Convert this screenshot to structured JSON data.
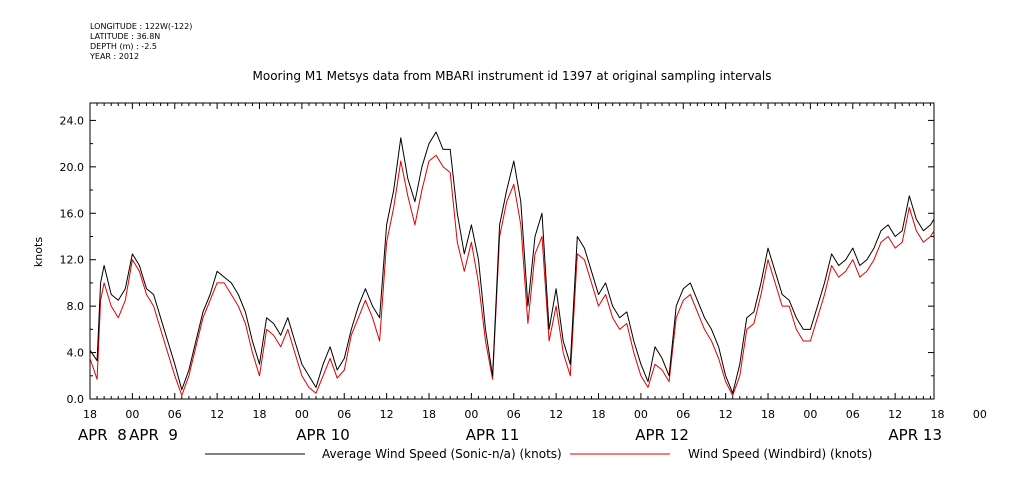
{
  "header": {
    "meta": [
      "LONGITUDE : 122W(-122)",
      "LATITUDE : 36.8N",
      "DEPTH (m) : -2.5",
      "YEAR : 2012"
    ],
    "title": "Mooring M1 Metsys data from MBARI instrument id 1397 at original sampling intervals"
  },
  "colors": {
    "sonic": "#000000",
    "windbird": "#e00000",
    "axis": "#000000"
  },
  "chart_data": {
    "type": "line",
    "title": "Mooring M1 Metsys data from MBARI instrument id 1397 at original sampling intervals",
    "ylabel": "knots",
    "xlabel": "",
    "ylim": [
      0,
      25.5
    ],
    "xlim_hours_from_apr8_18": [
      0,
      119.5
    ],
    "y_ticks": [
      "0.0",
      "4.0",
      "8.0",
      "12.0",
      "16.0",
      "20.0",
      "24.0"
    ],
    "x_hour_ticks": [
      "18",
      "00",
      "06",
      "12",
      "18",
      "00",
      "06",
      "12",
      "18",
      "00",
      "06",
      "12",
      "18",
      "00",
      "06",
      "12",
      "18",
      "00",
      "06",
      "12",
      "18",
      "00"
    ],
    "x_date_labels": [
      "APR  8",
      "APR  9",
      "APR 10",
      "APR 11",
      "APR 12",
      "APR 13"
    ],
    "grid": false,
    "legend_position": "bottom",
    "series": [
      {
        "name": "Average Wind Speed (Sonic-n/a) (knots)",
        "color": "#000000",
        "points": [
          [
            0,
            4.2
          ],
          [
            1,
            3.3
          ],
          [
            1.5,
            10
          ],
          [
            2,
            11.5
          ],
          [
            3,
            9
          ],
          [
            4,
            8.5
          ],
          [
            5,
            9.5
          ],
          [
            6,
            12.5
          ],
          [
            7,
            11.5
          ],
          [
            8,
            9.5
          ],
          [
            9,
            9
          ],
          [
            10,
            7
          ],
          [
            11,
            5
          ],
          [
            12,
            3
          ],
          [
            13,
            0.8
          ],
          [
            14,
            2.5
          ],
          [
            15,
            5
          ],
          [
            16,
            7.5
          ],
          [
            17,
            9
          ],
          [
            18,
            11
          ],
          [
            19,
            10.5
          ],
          [
            20,
            10
          ],
          [
            21,
            9
          ],
          [
            22,
            7.5
          ],
          [
            23,
            5
          ],
          [
            24,
            3
          ],
          [
            25,
            7
          ],
          [
            26,
            6.5
          ],
          [
            27,
            5.5
          ],
          [
            28,
            7
          ],
          [
            29,
            5
          ],
          [
            30,
            3
          ],
          [
            31,
            2
          ],
          [
            32,
            1
          ],
          [
            33,
            3
          ],
          [
            34,
            4.5
          ],
          [
            35,
            2.5
          ],
          [
            36,
            3.5
          ],
          [
            37,
            6
          ],
          [
            38,
            8
          ],
          [
            39,
            9.5
          ],
          [
            40,
            8
          ],
          [
            41,
            7
          ],
          [
            42,
            15
          ],
          [
            43,
            18
          ],
          [
            44,
            22.5
          ],
          [
            45,
            19
          ],
          [
            46,
            17
          ],
          [
            47,
            20
          ],
          [
            48,
            22
          ],
          [
            49,
            23
          ],
          [
            50,
            21.5
          ],
          [
            51,
            21.5
          ],
          [
            52,
            16
          ],
          [
            53,
            12.5
          ],
          [
            54,
            15
          ],
          [
            55,
            12
          ],
          [
            56,
            6
          ],
          [
            57,
            2
          ],
          [
            58,
            15
          ],
          [
            59,
            18
          ],
          [
            60,
            20.5
          ],
          [
            61,
            17
          ],
          [
            62,
            8
          ],
          [
            63,
            14
          ],
          [
            64,
            16
          ],
          [
            65,
            6
          ],
          [
            66,
            9.5
          ],
          [
            67,
            5
          ],
          [
            68,
            3
          ],
          [
            69,
            14
          ],
          [
            70,
            13
          ],
          [
            71,
            11
          ],
          [
            72,
            9
          ],
          [
            73,
            10
          ],
          [
            74,
            8
          ],
          [
            75,
            7
          ],
          [
            76,
            7.5
          ],
          [
            77,
            5
          ],
          [
            78,
            3
          ],
          [
            79,
            1.5
          ],
          [
            80,
            4.5
          ],
          [
            81,
            3.5
          ],
          [
            82,
            2
          ],
          [
            83,
            8
          ],
          [
            84,
            9.5
          ],
          [
            85,
            10
          ],
          [
            86,
            8.5
          ],
          [
            87,
            7
          ],
          [
            88,
            6
          ],
          [
            89,
            4.5
          ],
          [
            90,
            2
          ],
          [
            91,
            0.5
          ],
          [
            92,
            3
          ],
          [
            93,
            7
          ],
          [
            94,
            7.5
          ],
          [
            95,
            10
          ],
          [
            96,
            13
          ],
          [
            97,
            11
          ],
          [
            98,
            9
          ],
          [
            99,
            8.5
          ],
          [
            100,
            7
          ],
          [
            101,
            6
          ],
          [
            102,
            6
          ],
          [
            103,
            8
          ],
          [
            104,
            10
          ],
          [
            105,
            12.5
          ],
          [
            106,
            11.5
          ],
          [
            107,
            12
          ],
          [
            108,
            13
          ],
          [
            109,
            11.5
          ],
          [
            110,
            12
          ],
          [
            111,
            13
          ],
          [
            112,
            14.5
          ],
          [
            113,
            15
          ],
          [
            114,
            14
          ],
          [
            115,
            14.5
          ],
          [
            116,
            17.5
          ],
          [
            117,
            15.5
          ],
          [
            118,
            14.5
          ],
          [
            119,
            15
          ],
          [
            119.5,
            15.5
          ]
        ]
      },
      {
        "name": "Wind Speed (Windbird) (knots)",
        "color": "#e00000",
        "points": [
          [
            0,
            3.5
          ],
          [
            1,
            1.7
          ],
          [
            1.5,
            8.5
          ],
          [
            2,
            10
          ],
          [
            3,
            8
          ],
          [
            4,
            7
          ],
          [
            5,
            8.5
          ],
          [
            6,
            12
          ],
          [
            7,
            11
          ],
          [
            8,
            9
          ],
          [
            9,
            8
          ],
          [
            10,
            6
          ],
          [
            11,
            4
          ],
          [
            12,
            2
          ],
          [
            13,
            0.3
          ],
          [
            14,
            2
          ],
          [
            15,
            4.5
          ],
          [
            16,
            7
          ],
          [
            17,
            8.5
          ],
          [
            18,
            10
          ],
          [
            19,
            10
          ],
          [
            20,
            9
          ],
          [
            21,
            8
          ],
          [
            22,
            6.5
          ],
          [
            23,
            4
          ],
          [
            24,
            2
          ],
          [
            25,
            6
          ],
          [
            26,
            5.5
          ],
          [
            27,
            4.5
          ],
          [
            28,
            6
          ],
          [
            29,
            4
          ],
          [
            30,
            2
          ],
          [
            31,
            1
          ],
          [
            32,
            0.5
          ],
          [
            33,
            2
          ],
          [
            34,
            3.5
          ],
          [
            35,
            1.8
          ],
          [
            36,
            2.5
          ],
          [
            37,
            5.5
          ],
          [
            38,
            7
          ],
          [
            39,
            8.5
          ],
          [
            40,
            7
          ],
          [
            41,
            5
          ],
          [
            42,
            13.5
          ],
          [
            43,
            16.5
          ],
          [
            44,
            20.5
          ],
          [
            45,
            17.5
          ],
          [
            46,
            15
          ],
          [
            47,
            18
          ],
          [
            48,
            20.5
          ],
          [
            49,
            21
          ],
          [
            50,
            20
          ],
          [
            51,
            19.5
          ],
          [
            52,
            13.5
          ],
          [
            53,
            11
          ],
          [
            54,
            13.5
          ],
          [
            55,
            10
          ],
          [
            56,
            5
          ],
          [
            57,
            1.7
          ],
          [
            58,
            14
          ],
          [
            59,
            17
          ],
          [
            60,
            18.5
          ],
          [
            61,
            15
          ],
          [
            62,
            6.5
          ],
          [
            63,
            12.5
          ],
          [
            64,
            14
          ],
          [
            65,
            5
          ],
          [
            66,
            8
          ],
          [
            67,
            4
          ],
          [
            68,
            2
          ],
          [
            69,
            12.5
          ],
          [
            70,
            12
          ],
          [
            71,
            10
          ],
          [
            72,
            8
          ],
          [
            73,
            9
          ],
          [
            74,
            7
          ],
          [
            75,
            6
          ],
          [
            76,
            6.5
          ],
          [
            77,
            4
          ],
          [
            78,
            2
          ],
          [
            79,
            1
          ],
          [
            80,
            3
          ],
          [
            81,
            2.5
          ],
          [
            82,
            1.5
          ],
          [
            83,
            7
          ],
          [
            84,
            8.5
          ],
          [
            85,
            9
          ],
          [
            86,
            7.5
          ],
          [
            87,
            6
          ],
          [
            88,
            5
          ],
          [
            89,
            3.5
          ],
          [
            90,
            1.5
          ],
          [
            91,
            0.3
          ],
          [
            92,
            2
          ],
          [
            93,
            6
          ],
          [
            94,
            6.5
          ],
          [
            95,
            9
          ],
          [
            96,
            12
          ],
          [
            97,
            10
          ],
          [
            98,
            8
          ],
          [
            99,
            8
          ],
          [
            100,
            6
          ],
          [
            101,
            5
          ],
          [
            102,
            5
          ],
          [
            103,
            7
          ],
          [
            104,
            9
          ],
          [
            105,
            11.5
          ],
          [
            106,
            10.5
          ],
          [
            107,
            11
          ],
          [
            108,
            12
          ],
          [
            109,
            10.5
          ],
          [
            110,
            11
          ],
          [
            111,
            12
          ],
          [
            112,
            13.5
          ],
          [
            113,
            14
          ],
          [
            114,
            13
          ],
          [
            115,
            13.5
          ],
          [
            116,
            16.5
          ],
          [
            117,
            14.5
          ],
          [
            118,
            13.5
          ],
          [
            119,
            14
          ],
          [
            119.5,
            14.5
          ]
        ]
      }
    ]
  }
}
